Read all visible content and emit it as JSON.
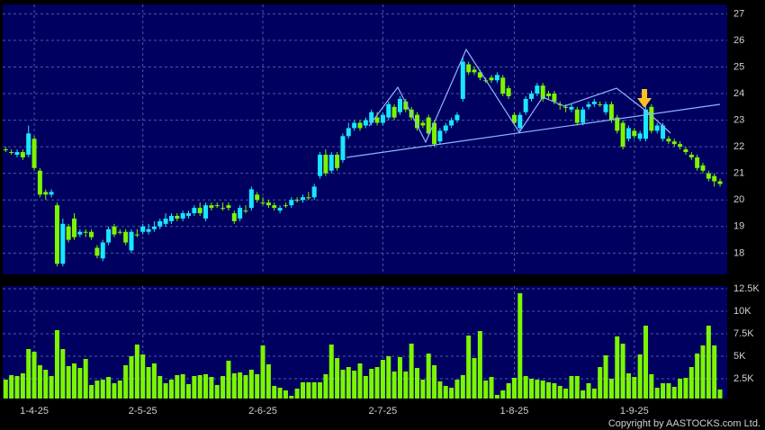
{
  "chart_data": [
    {
      "type": "candlestick",
      "open": [
        21.9,
        21.8,
        21.7,
        21.8,
        21.7,
        22.3,
        21.1,
        20.3,
        20.2,
        19.8,
        17.6,
        19.0,
        19.3,
        18.7,
        18.8,
        18.8,
        18.2,
        17.8,
        18.4,
        19.0,
        18.8,
        18.8,
        18.1,
        18.7,
        18.8,
        18.8,
        18.9,
        19.0,
        19.1,
        19.2,
        19.4,
        19.3,
        19.4,
        19.5,
        19.7,
        19.3,
        19.8,
        19.8,
        19.7,
        19.8,
        19.5,
        19.3,
        19.6,
        19.7,
        20.2,
        19.9,
        19.9,
        19.8,
        19.6,
        19.8,
        19.8,
        20.0,
        20.0,
        20.1,
        20.1,
        20.9,
        21.7,
        21.1,
        21.7,
        21.5,
        22.4,
        22.7,
        22.9,
        22.8,
        22.9,
        23.1,
        22.9,
        23.1,
        23.5,
        23.3,
        23.7,
        23.4,
        23.2,
        22.9,
        23.1,
        22.9,
        22.2,
        22.6,
        22.8,
        23.0,
        23.8,
        25.1,
        24.9,
        24.8,
        24.5,
        24.6,
        24.5,
        24.6,
        24.2,
        23.2,
        22.7,
        23.3,
        23.8,
        24.0,
        24.3,
        24.0,
        24.0,
        23.6,
        23.5,
        23.4,
        23.4,
        22.9,
        23.5,
        23.6,
        23.6,
        23.3,
        23.6,
        23.1,
        22.9,
        22.3,
        22.6,
        22.3,
        22.3,
        23.5,
        22.6,
        22.3,
        22.3,
        22.2,
        22.1,
        21.9,
        21.7,
        21.6,
        21.3,
        21.0,
        20.9,
        20.7
      ],
      "high": [
        22.0,
        21.9,
        21.9,
        21.9,
        22.8,
        22.4,
        21.2,
        20.4,
        20.4,
        19.9,
        19.3,
        19.1,
        19.5,
        18.9,
        18.9,
        18.9,
        18.3,
        18.5,
        19.0,
        19.1,
        18.9,
        18.9,
        18.9,
        18.9,
        19.1,
        19.1,
        19.2,
        19.3,
        19.5,
        19.5,
        19.5,
        19.6,
        19.6,
        19.8,
        19.9,
        19.9,
        19.9,
        19.9,
        19.9,
        19.9,
        19.6,
        19.8,
        19.8,
        20.5,
        20.3,
        20.1,
        20.0,
        19.9,
        19.8,
        19.9,
        20.1,
        20.1,
        20.2,
        20.3,
        20.6,
        21.8,
        21.9,
        21.8,
        21.8,
        22.5,
        22.9,
        23.0,
        23.0,
        23.1,
        23.4,
        23.3,
        23.3,
        23.7,
        23.6,
        23.9,
        23.8,
        23.5,
        23.3,
        23.0,
        23.2,
        23.0,
        22.7,
        22.9,
        23.1,
        23.3,
        25.4,
        25.2,
        25.0,
        24.9,
        24.6,
        24.7,
        24.8,
        24.7,
        24.3,
        23.3,
        23.3,
        23.9,
        24.1,
        24.4,
        24.4,
        24.1,
        24.1,
        23.7,
        23.6,
        23.6,
        23.5,
        23.5,
        23.7,
        23.8,
        23.7,
        23.7,
        23.7,
        23.2,
        23.0,
        22.8,
        22.7,
        22.6,
        23.6,
        23.6,
        22.9,
        22.9,
        22.4,
        22.3,
        22.2,
        22.0,
        21.8,
        21.7,
        21.4,
        21.1,
        21.0,
        20.8
      ],
      "low": [
        21.8,
        21.7,
        21.6,
        21.5,
        21.6,
        21.1,
        20.1,
        20.0,
        20.1,
        17.5,
        17.5,
        18.4,
        18.5,
        18.6,
        18.6,
        18.5,
        17.8,
        17.7,
        18.3,
        18.6,
        18.7,
        18.3,
        18.0,
        18.6,
        18.7,
        18.7,
        18.8,
        18.9,
        19.0,
        19.1,
        19.2,
        19.2,
        19.3,
        19.4,
        19.4,
        19.2,
        19.6,
        19.7,
        19.6,
        19.6,
        19.1,
        19.2,
        19.5,
        19.6,
        19.9,
        19.8,
        19.7,
        19.6,
        19.5,
        19.7,
        19.7,
        19.9,
        19.9,
        20.0,
        20.0,
        20.8,
        20.9,
        21.0,
        21.1,
        21.4,
        22.3,
        22.6,
        22.6,
        22.7,
        22.8,
        22.8,
        22.8,
        23.0,
        23.0,
        23.2,
        23.3,
        23.0,
        22.6,
        22.7,
        22.4,
        22.0,
        22.1,
        22.5,
        22.7,
        22.9,
        23.7,
        24.7,
        24.7,
        24.5,
        24.4,
        24.4,
        24.4,
        23.9,
        23.8,
        22.8,
        22.6,
        23.2,
        23.7,
        23.9,
        23.7,
        23.8,
        23.6,
        23.4,
        23.3,
        23.3,
        22.8,
        22.8,
        23.4,
        23.5,
        23.5,
        23.2,
        22.9,
        22.5,
        21.9,
        22.2,
        22.3,
        22.2,
        22.2,
        22.5,
        22.5,
        22.2,
        22.1,
        22.0,
        21.9,
        21.7,
        21.5,
        21.1,
        21.0,
        20.7,
        20.5,
        20.5
      ],
      "close": [
        21.9,
        21.8,
        21.8,
        21.6,
        22.5,
        21.2,
        20.2,
        20.2,
        20.3,
        17.6,
        19.1,
        18.5,
        18.6,
        18.8,
        18.8,
        18.6,
        17.9,
        18.4,
        18.9,
        18.7,
        18.8,
        18.4,
        18.8,
        18.7,
        19.0,
        18.9,
        19.0,
        19.2,
        19.3,
        19.4,
        19.3,
        19.5,
        19.5,
        19.7,
        19.5,
        19.8,
        19.7,
        19.8,
        19.7,
        19.7,
        19.2,
        19.7,
        19.6,
        20.4,
        20.0,
        19.9,
        19.8,
        19.7,
        19.7,
        19.8,
        20.0,
        20.0,
        20.1,
        20.1,
        20.5,
        21.7,
        21.0,
        21.7,
        21.2,
        22.4,
        22.7,
        22.9,
        22.7,
        23.0,
        23.3,
        22.9,
        23.2,
        23.6,
        23.1,
        23.8,
        23.4,
        23.1,
        22.7,
        22.8,
        22.5,
        22.1,
        22.6,
        22.8,
        23.0,
        23.2,
        25.2,
        24.8,
        24.8,
        24.6,
        24.5,
        24.5,
        24.7,
        24.0,
        23.9,
        22.9,
        23.2,
        23.8,
        24.0,
        24.3,
        23.8,
        23.9,
        23.7,
        23.6,
        23.5,
        23.5,
        22.9,
        23.4,
        23.6,
        23.7,
        23.6,
        23.6,
        23.0,
        22.6,
        22.0,
        22.7,
        22.4,
        22.5,
        23.4,
        22.6,
        22.8,
        22.8,
        22.2,
        22.1,
        22.0,
        21.8,
        21.6,
        21.2,
        21.1,
        20.8,
        20.7,
        20.6
      ],
      "ylim": [
        17.2,
        27.35
      ],
      "yticks": [
        18,
        19,
        20,
        21,
        22,
        23,
        24,
        25,
        26,
        27
      ],
      "grid": true,
      "up_color": "#19e6ff",
      "down_color": "#7cf500"
    },
    {
      "type": "bar",
      "categories": [
        null,
        null,
        null,
        null,
        null,
        "1-4-25",
        null,
        null,
        null,
        null,
        null,
        null,
        null,
        null,
        null,
        null,
        null,
        null,
        null,
        null,
        null,
        null,
        null,
        null,
        "2-5-25",
        null,
        null,
        null,
        null,
        null,
        null,
        null,
        null,
        null,
        null,
        null,
        null,
        null,
        null,
        null,
        null,
        null,
        null,
        null,
        null,
        "2-6-25",
        null,
        null,
        null,
        null,
        null,
        null,
        null,
        null,
        null,
        null,
        null,
        null,
        null,
        null,
        null,
        null,
        null,
        null,
        null,
        null,
        "2-7-25",
        null,
        null,
        null,
        null,
        null,
        null,
        null,
        null,
        null,
        null,
        null,
        null,
        null,
        null,
        null,
        null,
        null,
        null,
        null,
        null,
        null,
        null,
        "1-8-25",
        null,
        null,
        null,
        null,
        null,
        null,
        null,
        null,
        null,
        null,
        null,
        null,
        null,
        null,
        null,
        null,
        null,
        null,
        null,
        null,
        "1-9-25",
        null,
        null,
        null,
        null,
        null,
        null,
        null,
        null,
        null,
        null,
        null,
        null,
        null,
        null,
        null
      ],
      "values": [
        2400,
        2900,
        2800,
        3100,
        5800,
        5500,
        4000,
        3500,
        2800,
        7900,
        5800,
        3900,
        4200,
        3700,
        4700,
        1800,
        2300,
        2400,
        2700,
        2000,
        2300,
        4000,
        5000,
        6300,
        5200,
        3800,
        4200,
        2800,
        2000,
        2400,
        2900,
        3000,
        1900,
        2800,
        2900,
        3000,
        2700,
        1800,
        2800,
        4500,
        3100,
        3200,
        2900,
        3500,
        3000,
        6200,
        4100,
        1700,
        1500,
        1200,
        600,
        1400,
        2100,
        2100,
        2100,
        2100,
        3000,
        6300,
        4800,
        3500,
        3800,
        3400,
        4200,
        2800,
        3600,
        3800,
        4600,
        5000,
        3300,
        4900,
        3300,
        6400,
        3700,
        2400,
        5300,
        4000,
        2200,
        1700,
        1500,
        2400,
        2900,
        7300,
        4800,
        7800,
        2300,
        2700,
        700,
        1200,
        2000,
        2600,
        12000,
        2800,
        2500,
        2400,
        2300,
        2100,
        2000,
        1700,
        1400,
        2800,
        2800,
        1200,
        2000,
        1400,
        3800,
        5100,
        2500,
        7200,
        6400,
        3100,
        2700,
        5200,
        8400,
        3000,
        1500,
        2000,
        2000,
        1600,
        2500,
        2600,
        3800,
        5300,
        6200,
        8400,
        6200,
        1300
      ],
      "ylim": [
        300,
        12800
      ],
      "yticks": [
        {
          "value": 2500,
          "label": "2.5K"
        },
        {
          "value": 5000,
          "label": "5K"
        },
        {
          "value": 7500,
          "label": "7.5K"
        },
        {
          "value": 10000,
          "label": "10K"
        },
        {
          "value": 12500,
          "label": "12.5K"
        }
      ],
      "grid": true,
      "color": "#7cf500"
    }
  ],
  "copyright": "Copyright by AASTOCKS.com Ltd."
}
